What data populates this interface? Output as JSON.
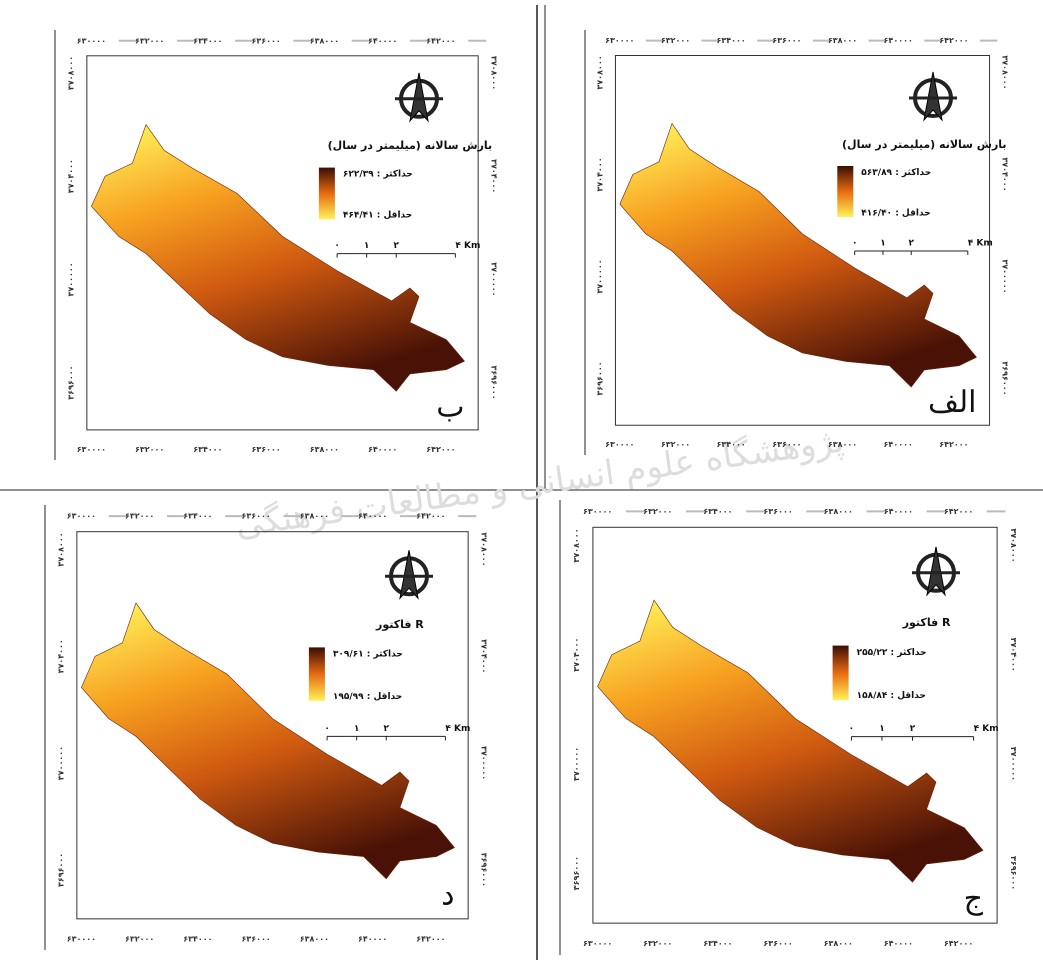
{
  "x_ticks": [
    "۶۳۰۰۰۰",
    "۶۳۲۰۰۰",
    "۶۳۴۰۰۰",
    "۶۳۶۰۰۰",
    "۶۳۸۰۰۰",
    "۶۴۰۰۰۰",
    "۶۴۲۰۰۰"
  ],
  "y_ticks": [
    "۳۷۰۸۰۰۰",
    "۳۷۰۴۰۰۰",
    "۳۷۰۰۰۰۰",
    "۳۶۹۶۰۰۰"
  ],
  "scale_labels": [
    "۰",
    "۱",
    "۲",
    "۴ Km"
  ],
  "watermark": "پژوهشگاه علوم انسانی و مطالعات فرهنگی",
  "panels": [
    {
      "letter": "ب",
      "title": "بارش سالانه (میلیمتر در سال)",
      "max": "حداکثر : ۶۲۲/۳۹",
      "min": "حداقل : ۴۶۴/۴۱"
    },
    {
      "letter": "الف",
      "title": "بارش سالانه (میلیمتر در سال)",
      "max": "حداکثر : ۵۶۳/۸۹",
      "min": "حداقل : ۴۱۶/۴۰"
    },
    {
      "letter": "د",
      "title": "فاکتور R",
      "max": "حداکثر : ۳۰۹/۶۱",
      "min": "حداقل : ۱۹۵/۹۹"
    },
    {
      "letter": "ج",
      "title": "فاکتور R",
      "max": "حداکثر : ۲۵۵/۲۲",
      "min": "حداقل : ۱۵۸/۸۴"
    }
  ]
}
